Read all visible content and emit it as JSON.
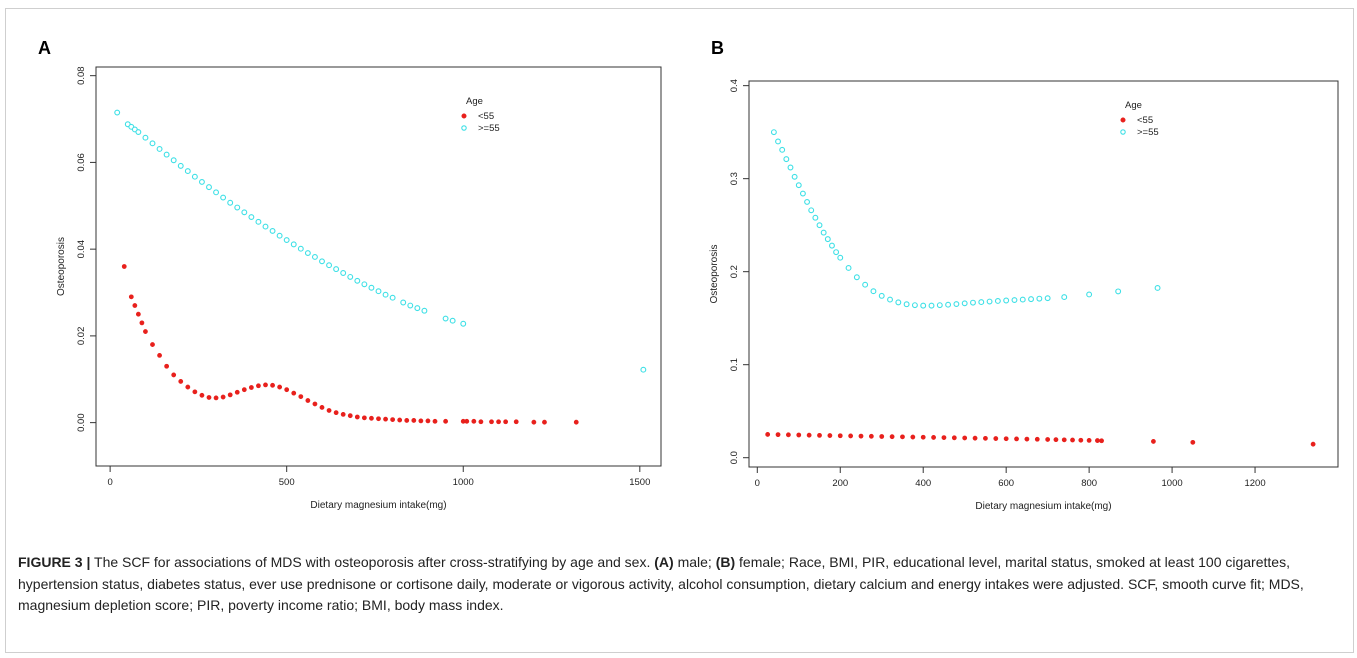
{
  "chart_data": [
    {
      "panel": "A",
      "type": "scatter",
      "xlabel": "Dietary magnesium intake(mg)",
      "ylabel": "Osteoporosis",
      "xlim": [
        -40,
        1560
      ],
      "ylim": [
        -0.01,
        0.082
      ],
      "xticks": [
        0,
        500,
        1000,
        1500
      ],
      "yticks": [
        0.0,
        0.02,
        0.04,
        0.06,
        0.08
      ],
      "xtick_labels": [
        "0",
        "500",
        "1000",
        "1500"
      ],
      "ytick_labels": [
        "0.00",
        "0.02",
        "0.04",
        "0.06",
        "0.08"
      ],
      "legend_title": "Age",
      "legend_position": "top-right",
      "series": [
        {
          "name": "<55",
          "color": "#e8201c",
          "x": [
            40,
            60,
            70,
            80,
            90,
            100,
            120,
            140,
            160,
            180,
            200,
            220,
            240,
            260,
            280,
            300,
            320,
            340,
            360,
            380,
            400,
            420,
            440,
            460,
            480,
            500,
            520,
            540,
            560,
            580,
            600,
            620,
            640,
            660,
            680,
            700,
            720,
            740,
            760,
            780,
            800,
            820,
            840,
            860,
            880,
            900,
            920,
            950,
            1000,
            1010,
            1030,
            1050,
            1080,
            1100,
            1120,
            1150,
            1200,
            1230,
            1320
          ],
          "y": [
            0.036,
            0.029,
            0.027,
            0.025,
            0.023,
            0.021,
            0.018,
            0.0155,
            0.013,
            0.011,
            0.0095,
            0.0082,
            0.0071,
            0.0063,
            0.0058,
            0.0057,
            0.0059,
            0.0064,
            0.007,
            0.0076,
            0.0081,
            0.0085,
            0.0087,
            0.0086,
            0.0082,
            0.0076,
            0.0068,
            0.006,
            0.0051,
            0.0043,
            0.0035,
            0.0028,
            0.0023,
            0.0019,
            0.0016,
            0.0013,
            0.0011,
            0.001,
            0.0009,
            0.0008,
            0.0007,
            0.0006,
            0.0005,
            0.0005,
            0.0004,
            0.0004,
            0.0003,
            0.0003,
            0.0003,
            0.0003,
            0.0003,
            0.0002,
            0.0002,
            0.0002,
            0.0002,
            0.0002,
            0.0001,
            0.0001,
            0.0001
          ]
        },
        {
          "name": ">=55",
          "color": "#3ee0e6",
          "x": [
            20,
            50,
            60,
            70,
            80,
            100,
            120,
            140,
            160,
            180,
            200,
            220,
            240,
            260,
            280,
            300,
            320,
            340,
            360,
            380,
            400,
            420,
            440,
            460,
            480,
            500,
            520,
            540,
            560,
            580,
            600,
            620,
            640,
            660,
            680,
            700,
            720,
            740,
            760,
            780,
            800,
            830,
            850,
            870,
            890,
            950,
            970,
            1000,
            1510
          ],
          "y": [
            0.0715,
            0.0688,
            0.0682,
            0.0676,
            0.067,
            0.0657,
            0.0644,
            0.0631,
            0.0618,
            0.0605,
            0.0592,
            0.058,
            0.0567,
            0.0555,
            0.0543,
            0.0531,
            0.0519,
            0.0507,
            0.0496,
            0.0485,
            0.0474,
            0.0463,
            0.0452,
            0.0442,
            0.0431,
            0.0421,
            0.0411,
            0.0401,
            0.0391,
            0.0382,
            0.0372,
            0.0363,
            0.0354,
            0.0345,
            0.0336,
            0.0327,
            0.0319,
            0.0311,
            0.0303,
            0.0295,
            0.0288,
            0.0277,
            0.027,
            0.0264,
            0.0258,
            0.024,
            0.0235,
            0.0228,
            0.0122
          ]
        }
      ]
    },
    {
      "panel": "B",
      "type": "scatter",
      "xlabel": "Dietary magnesium intake(mg)",
      "ylabel": "Osteoporosis",
      "xlim": [
        -20,
        1400
      ],
      "ylim": [
        -0.01,
        0.405
      ],
      "xticks": [
        0,
        200,
        400,
        600,
        800,
        1000,
        1200
      ],
      "yticks": [
        0.0,
        0.1,
        0.2,
        0.3,
        0.4
      ],
      "xtick_labels": [
        "0",
        "200",
        "400",
        "600",
        "800",
        "1000",
        "1200"
      ],
      "ytick_labels": [
        "0.0",
        "0.1",
        "0.2",
        "0.3",
        "0.4"
      ],
      "legend_title": "Age",
      "legend_position": "top-right",
      "series": [
        {
          "name": "<55",
          "color": "#e8201c",
          "x": [
            25,
            50,
            75,
            100,
            125,
            150,
            175,
            200,
            225,
            250,
            275,
            300,
            325,
            350,
            375,
            400,
            425,
            450,
            475,
            500,
            525,
            550,
            575,
            600,
            625,
            650,
            675,
            700,
            720,
            740,
            760,
            780,
            800,
            820,
            830,
            955,
            1050,
            1340
          ],
          "y": [
            0.025,
            0.0248,
            0.0246,
            0.0244,
            0.0242,
            0.024,
            0.0238,
            0.0236,
            0.0234,
            0.0232,
            0.023,
            0.0228,
            0.0226,
            0.0224,
            0.0222,
            0.022,
            0.0218,
            0.0216,
            0.0214,
            0.0212,
            0.021,
            0.0208,
            0.0206,
            0.0204,
            0.0202,
            0.02,
            0.0198,
            0.0196,
            0.0194,
            0.0192,
            0.019,
            0.0188,
            0.0186,
            0.0184,
            0.0182,
            0.0175,
            0.0165,
            0.0145
          ]
        },
        {
          "name": ">=55",
          "color": "#3ee0e6",
          "x": [
            40,
            50,
            60,
            70,
            80,
            90,
            100,
            110,
            120,
            130,
            140,
            150,
            160,
            170,
            180,
            190,
            200,
            220,
            240,
            260,
            280,
            300,
            320,
            340,
            360,
            380,
            400,
            420,
            440,
            460,
            480,
            500,
            520,
            540,
            560,
            580,
            600,
            620,
            640,
            660,
            680,
            700,
            740,
            800,
            870,
            965
          ],
          "y": [
            0.35,
            0.34,
            0.331,
            0.321,
            0.312,
            0.302,
            0.293,
            0.284,
            0.275,
            0.266,
            0.258,
            0.25,
            0.242,
            0.235,
            0.228,
            0.221,
            0.215,
            0.204,
            0.194,
            0.186,
            0.179,
            0.174,
            0.17,
            0.167,
            0.165,
            0.164,
            0.1635,
            0.1635,
            0.164,
            0.1645,
            0.1652,
            0.166,
            0.1667,
            0.1673,
            0.1679,
            0.1685,
            0.169,
            0.1695,
            0.17,
            0.1705,
            0.171,
            0.1715,
            0.1727,
            0.1755,
            0.1788,
            0.1825
          ]
        }
      ]
    }
  ],
  "caption": {
    "label": "FIGURE 3 |",
    "text1": " The SCF for associations of MDS with osteoporosis after cross-stratifying by age and sex. ",
    "a_label": "(A)",
    "text2": " male; ",
    "b_label": "(B)",
    "text3": " female; Race, BMI, PIR, educational level, marital status, smoked at least 100 cigarettes, hypertension status, diabetes status, ever use prednisone or cortisone daily, moderate or vigorous activity, alcohol consumption, dietary calcium and energy intakes were adjusted. SCF, smooth curve fit; MDS, magnesium depletion score; PIR, poverty income ratio; BMI, body mass index."
  }
}
